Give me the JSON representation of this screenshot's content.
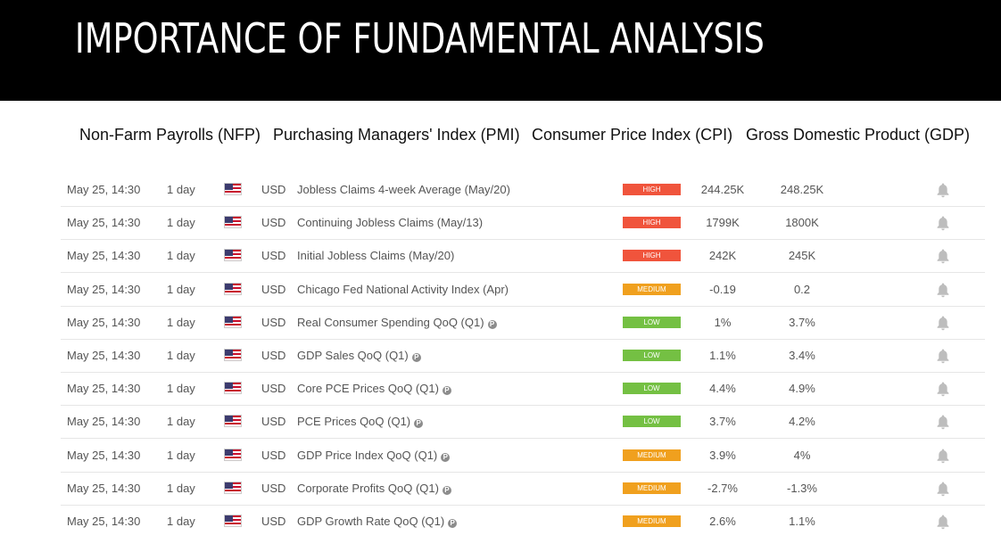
{
  "title": "IMPORTANCE OF FUNDAMENTAL ANALYSIS",
  "indicators": [
    "Non-Farm Payrolls (NFP)",
    "Purchasing Managers' Index (PMI)",
    "Consumer Price Index (CPI)",
    "Gross Domestic Product (GDP)"
  ],
  "colors": {
    "high": "#f0543c",
    "medium": "#f0a01e",
    "low": "#74c043"
  },
  "icons": {
    "flag": "us-flag-icon",
    "info": "info-icon",
    "alert": "bell-icon"
  },
  "events": [
    {
      "time": "May 25, 14:30",
      "period": "1 day",
      "currency": "USD",
      "name": "Jobless Claims 4-week Average (May/20)",
      "preliminary": false,
      "impact": "HIGH",
      "actual": "244.25K",
      "previous": "248.25K"
    },
    {
      "time": "May 25, 14:30",
      "period": "1 day",
      "currency": "USD",
      "name": "Continuing Jobless Claims (May/13)",
      "preliminary": false,
      "impact": "HIGH",
      "actual": "1799K",
      "previous": "1800K"
    },
    {
      "time": "May 25, 14:30",
      "period": "1 day",
      "currency": "USD",
      "name": "Initial Jobless Claims (May/20)",
      "preliminary": false,
      "impact": "HIGH",
      "actual": "242K",
      "previous": "245K"
    },
    {
      "time": "May 25, 14:30",
      "period": "1 day",
      "currency": "USD",
      "name": "Chicago Fed National Activity Index (Apr)",
      "preliminary": false,
      "impact": "MEDIUM",
      "actual": "-0.19",
      "previous": "0.2"
    },
    {
      "time": "May 25, 14:30",
      "period": "1 day",
      "currency": "USD",
      "name": "Real Consumer Spending QoQ (Q1)",
      "preliminary": true,
      "impact": "LOW",
      "actual": "1%",
      "previous": "3.7%"
    },
    {
      "time": "May 25, 14:30",
      "period": "1 day",
      "currency": "USD",
      "name": "GDP Sales QoQ (Q1)",
      "preliminary": true,
      "impact": "LOW",
      "actual": "1.1%",
      "previous": "3.4%"
    },
    {
      "time": "May 25, 14:30",
      "period": "1 day",
      "currency": "USD",
      "name": "Core PCE Prices QoQ (Q1)",
      "preliminary": true,
      "impact": "LOW",
      "actual": "4.4%",
      "previous": "4.9%"
    },
    {
      "time": "May 25, 14:30",
      "period": "1 day",
      "currency": "USD",
      "name": "PCE Prices QoQ (Q1)",
      "preliminary": true,
      "impact": "LOW",
      "actual": "3.7%",
      "previous": "4.2%"
    },
    {
      "time": "May 25, 14:30",
      "period": "1 day",
      "currency": "USD",
      "name": "GDP Price Index QoQ (Q1)",
      "preliminary": true,
      "impact": "MEDIUM",
      "actual": "3.9%",
      "previous": "4%"
    },
    {
      "time": "May 25, 14:30",
      "period": "1 day",
      "currency": "USD",
      "name": "Corporate Profits QoQ (Q1)",
      "preliminary": true,
      "impact": "MEDIUM",
      "actual": "-2.7%",
      "previous": "-1.3%"
    },
    {
      "time": "May 25, 14:30",
      "period": "1 day",
      "currency": "USD",
      "name": "GDP Growth Rate QoQ (Q1)",
      "preliminary": true,
      "impact": "MEDIUM",
      "actual": "2.6%",
      "previous": "1.1%"
    }
  ]
}
